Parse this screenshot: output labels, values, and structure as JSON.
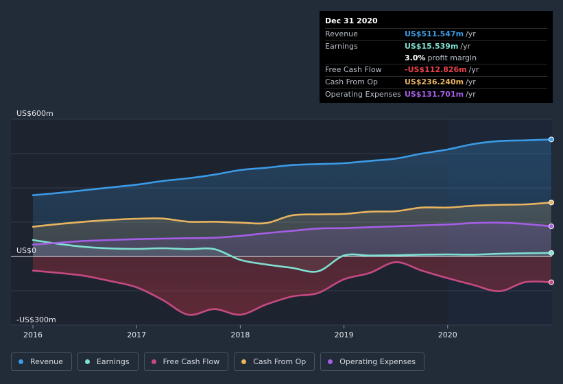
{
  "tooltip": {
    "date": "Dec 31 2020",
    "rows": [
      {
        "label": "Revenue",
        "value": "US$511.547m",
        "unit": "/yr",
        "color": "#3b9be6"
      },
      {
        "label": "Earnings",
        "value": "US$15.539m",
        "unit": "/yr",
        "color": "#7fe0d0"
      },
      {
        "label": "",
        "value": "3.0%",
        "unit": "profit margin",
        "color": "#ffffff"
      },
      {
        "label": "Free Cash Flow",
        "value": "-US$112.826m",
        "unit": "/yr",
        "color": "#e8414a"
      },
      {
        "label": "Cash From Op",
        "value": "US$236.240m",
        "unit": "/yr",
        "color": "#e9b45f"
      },
      {
        "label": "Operating Expenses",
        "value": "US$131.701m",
        "unit": "/yr",
        "color": "#a55ee6"
      }
    ]
  },
  "legend": [
    {
      "label": "Revenue",
      "color": "#3b9be6"
    },
    {
      "label": "Earnings",
      "color": "#7fe0d0"
    },
    {
      "label": "Free Cash Flow",
      "color": "#c54a82"
    },
    {
      "label": "Cash From Op",
      "color": "#e9b45f"
    },
    {
      "label": "Operating Expenses",
      "color": "#a55ee6"
    }
  ],
  "chart_data": {
    "type": "area",
    "y_unit": "US$m",
    "ylim": [
      -300,
      600
    ],
    "y_ticks": [
      {
        "value": 600,
        "label": "US$600m"
      },
      {
        "value": 0,
        "label": "US$0"
      },
      {
        "value": -300,
        "label": "-US$300m"
      }
    ],
    "xlim": [
      2016,
      2021
    ],
    "x_ticks": [
      {
        "value": 2016,
        "label": "2016"
      },
      {
        "value": 2017,
        "label": "2017"
      },
      {
        "value": 2018,
        "label": "2018"
      },
      {
        "value": 2019,
        "label": "2019"
      },
      {
        "value": 2020,
        "label": "2020"
      }
    ],
    "forecast_start": 2020,
    "series": [
      {
        "name": "Revenue",
        "color": "#3b9be6",
        "points": [
          [
            2016.0,
            268
          ],
          [
            2016.25,
            278
          ],
          [
            2016.5,
            290
          ],
          [
            2016.75,
            302
          ],
          [
            2017.0,
            314
          ],
          [
            2017.25,
            330
          ],
          [
            2017.5,
            342
          ],
          [
            2017.75,
            358
          ],
          [
            2018.0,
            378
          ],
          [
            2018.25,
            388
          ],
          [
            2018.5,
            400
          ],
          [
            2018.75,
            404
          ],
          [
            2019.0,
            408
          ],
          [
            2019.25,
            418
          ],
          [
            2019.5,
            428
          ],
          [
            2019.75,
            450
          ],
          [
            2020.0,
            468
          ],
          [
            2020.25,
            492
          ],
          [
            2020.5,
            505
          ],
          [
            2020.75,
            508
          ],
          [
            2021.0,
            512
          ]
        ]
      },
      {
        "name": "Earnings",
        "color": "#7fe0d0",
        "points": [
          [
            2016.0,
            72
          ],
          [
            2016.25,
            55
          ],
          [
            2016.5,
            42
          ],
          [
            2016.75,
            35
          ],
          [
            2017.0,
            33
          ],
          [
            2017.25,
            36
          ],
          [
            2017.5,
            32
          ],
          [
            2017.75,
            32
          ],
          [
            2018.0,
            -15
          ],
          [
            2018.25,
            -35
          ],
          [
            2018.5,
            -50
          ],
          [
            2018.75,
            -65
          ],
          [
            2019.0,
            4
          ],
          [
            2019.25,
            4
          ],
          [
            2019.5,
            5
          ],
          [
            2019.75,
            8
          ],
          [
            2020.0,
            9
          ],
          [
            2020.25,
            8
          ],
          [
            2020.5,
            12
          ],
          [
            2020.75,
            14
          ],
          [
            2021.0,
            15.5
          ]
        ]
      },
      {
        "name": "Free Cash Flow",
        "color": "#c54a82",
        "points": [
          [
            2016.0,
            -62
          ],
          [
            2016.25,
            -72
          ],
          [
            2016.5,
            -85
          ],
          [
            2016.75,
            -108
          ],
          [
            2017.0,
            -135
          ],
          [
            2017.25,
            -190
          ],
          [
            2017.5,
            -255
          ],
          [
            2017.75,
            -230
          ],
          [
            2018.0,
            -255
          ],
          [
            2018.25,
            -210
          ],
          [
            2018.5,
            -175
          ],
          [
            2018.75,
            -160
          ],
          [
            2019.0,
            -100
          ],
          [
            2019.25,
            -72
          ],
          [
            2019.5,
            -25
          ],
          [
            2019.75,
            -62
          ],
          [
            2020.0,
            -95
          ],
          [
            2020.25,
            -125
          ],
          [
            2020.5,
            -152
          ],
          [
            2020.75,
            -112
          ],
          [
            2021.0,
            -112.8
          ]
        ]
      },
      {
        "name": "Cash From Op",
        "color": "#e9b45f",
        "points": [
          [
            2016.0,
            130
          ],
          [
            2016.25,
            142
          ],
          [
            2016.5,
            152
          ],
          [
            2016.75,
            160
          ],
          [
            2017.0,
            165
          ],
          [
            2017.25,
            166
          ],
          [
            2017.5,
            152
          ],
          [
            2017.75,
            152
          ],
          [
            2018.0,
            148
          ],
          [
            2018.25,
            146
          ],
          [
            2018.5,
            180
          ],
          [
            2018.75,
            184
          ],
          [
            2019.0,
            186
          ],
          [
            2019.25,
            196
          ],
          [
            2019.5,
            198
          ],
          [
            2019.75,
            214
          ],
          [
            2020.0,
            214
          ],
          [
            2020.25,
            222
          ],
          [
            2020.5,
            226
          ],
          [
            2020.75,
            228
          ],
          [
            2021.0,
            236
          ]
        ]
      },
      {
        "name": "Operating Expenses",
        "color": "#a55ee6",
        "points": [
          [
            2016.0,
            52
          ],
          [
            2016.25,
            60
          ],
          [
            2016.5,
            68
          ],
          [
            2016.75,
            72
          ],
          [
            2017.0,
            76
          ],
          [
            2017.25,
            78
          ],
          [
            2017.5,
            80
          ],
          [
            2017.75,
            82
          ],
          [
            2018.0,
            90
          ],
          [
            2018.25,
            102
          ],
          [
            2018.5,
            112
          ],
          [
            2018.75,
            122
          ],
          [
            2019.0,
            124
          ],
          [
            2019.25,
            128
          ],
          [
            2019.5,
            132
          ],
          [
            2019.75,
            136
          ],
          [
            2020.0,
            140
          ],
          [
            2020.25,
            146
          ],
          [
            2020.5,
            148
          ],
          [
            2020.75,
            142
          ],
          [
            2021.0,
            132
          ]
        ]
      }
    ]
  }
}
